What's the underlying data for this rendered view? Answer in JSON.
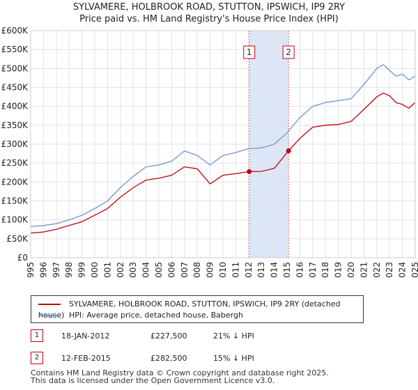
{
  "title_line1": "SYLVAMERE, HOLBROOK ROAD, STUTTON, IPSWICH, IP9 2RY",
  "title_line2": "Price paid vs. HM Land Registry's House Price Index (HPI)",
  "colors": {
    "price_line": "#c0000a",
    "hpi_line": "#6f95cc",
    "shade": "#dde6f6",
    "grid": "#e3e3e3",
    "marker_border": "#c0000a"
  },
  "chart_data": {
    "type": "line",
    "title": "Price paid vs. HM Land Registry's House Price Index (HPI)",
    "xlabel": "",
    "ylabel": "",
    "xlim": [
      1995,
      2025
    ],
    "ylim": [
      0,
      600000
    ],
    "y_ticks": [
      0,
      50000,
      100000,
      150000,
      200000,
      250000,
      300000,
      350000,
      400000,
      450000,
      500000,
      550000,
      600000
    ],
    "y_tick_labels": [
      "£0",
      "£50K",
      "£100K",
      "£150K",
      "£200K",
      "£250K",
      "£300K",
      "£350K",
      "£400K",
      "£450K",
      "£500K",
      "£550K",
      "£600K"
    ],
    "x_ticks": [
      1995,
      1996,
      1997,
      1998,
      1999,
      2000,
      2001,
      2002,
      2003,
      2004,
      2005,
      2006,
      2007,
      2008,
      2009,
      2010,
      2011,
      2012,
      2013,
      2014,
      2015,
      2016,
      2017,
      2018,
      2019,
      2020,
      2021,
      2022,
      2023,
      2024,
      2025
    ],
    "x_tick_labels": [
      "1995",
      "1996",
      "1997",
      "1998",
      "1999",
      "2000",
      "2001",
      "2002",
      "2003",
      "2004",
      "2005",
      "2006",
      "2007",
      "2008",
      "2009",
      "2010",
      "2011",
      "2012",
      "2013",
      "2014",
      "2015",
      "2016",
      "2017",
      "2018",
      "2019",
      "2020",
      "2021",
      "2022",
      "2023",
      "2024",
      "2025"
    ],
    "grid": true,
    "shaded_range": [
      2012.05,
      2015.12
    ],
    "series": [
      {
        "name": "SYLVAMERE, HOLBROOK ROAD, STUTTON, IPSWICH, IP9 2RY (detached house)",
        "color": "#c0000a",
        "x": [
          1995,
          1996,
          1997,
          1998,
          1999,
          2000,
          2001,
          2002,
          2003,
          2004,
          2005,
          2006,
          2007,
          2008,
          2009,
          2010,
          2011,
          2012.05,
          2013,
          2014,
          2015.12,
          2016,
          2017,
          2018,
          2019,
          2020,
          2021,
          2022,
          2022.5,
          2023,
          2023.5,
          2024,
          2024.5,
          2025
        ],
        "values": [
          65000,
          68000,
          75000,
          85000,
          95000,
          112000,
          130000,
          160000,
          185000,
          205000,
          210000,
          218000,
          240000,
          235000,
          195000,
          218000,
          222000,
          227500,
          228000,
          236000,
          282500,
          315000,
          345000,
          350000,
          352000,
          360000,
          392000,
          425000,
          435000,
          428000,
          410000,
          405000,
          395000,
          410000
        ]
      },
      {
        "name": "HPI: Average price, detached house, Babergh",
        "color": "#6f95cc",
        "x": [
          1995,
          1996,
          1997,
          1998,
          1999,
          2000,
          2001,
          2002,
          2003,
          2004,
          2005,
          2006,
          2007,
          2008,
          2009,
          2010,
          2011,
          2012,
          2013,
          2014,
          2015,
          2016,
          2017,
          2018,
          2019,
          2020,
          2021,
          2022,
          2022.5,
          2023,
          2023.5,
          2024,
          2024.5,
          2025
        ],
        "values": [
          82000,
          85000,
          90000,
          100000,
          112000,
          130000,
          150000,
          185000,
          215000,
          240000,
          245000,
          255000,
          282000,
          270000,
          245000,
          270000,
          278000,
          288000,
          290000,
          300000,
          330000,
          370000,
          400000,
          410000,
          415000,
          420000,
          458000,
          500000,
          510000,
          495000,
          480000,
          485000,
          470000,
          480000
        ]
      }
    ],
    "markers": [
      {
        "label": "1",
        "x": 2012.05,
        "value": 227500
      },
      {
        "label": "2",
        "x": 2015.12,
        "value": 282500
      }
    ]
  },
  "legend": {
    "price_label": "SYLVAMERE, HOLBROOK ROAD, STUTTON, IPSWICH, IP9 2RY (detached house)",
    "hpi_label": "HPI: Average price, detached house, Babergh"
  },
  "sales": [
    {
      "num": "1",
      "date": "18-JAN-2012",
      "price": "£227,500",
      "hpi": "21% ↓ HPI"
    },
    {
      "num": "2",
      "date": "12-FEB-2015",
      "price": "£282,500",
      "hpi": "15% ↓ HPI"
    }
  ],
  "footer": {
    "line1": "Contains HM Land Registry data © Crown copyright and database right 2025.",
    "line2": "This data is licensed under the Open Government Licence v3.0."
  }
}
